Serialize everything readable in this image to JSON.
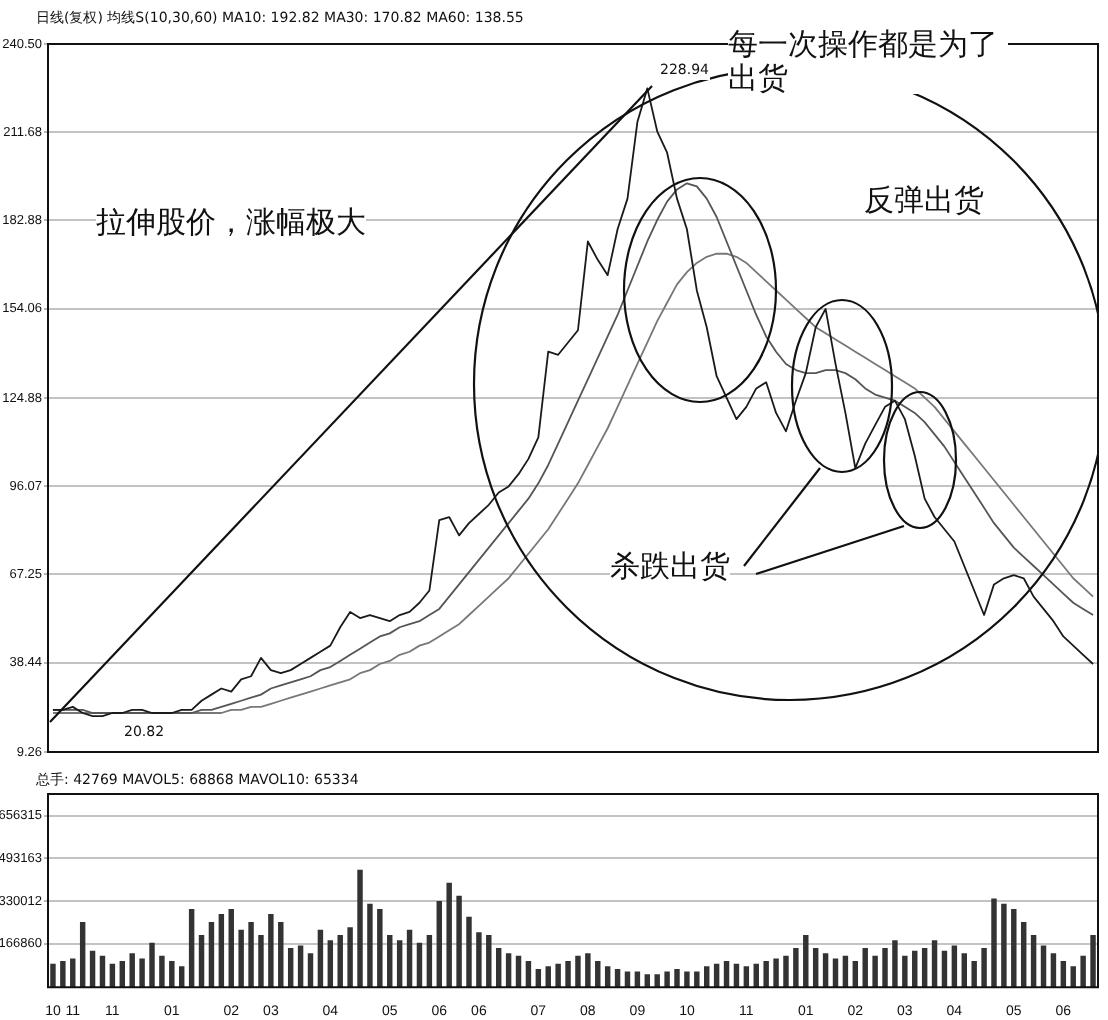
{
  "chart_data": [
    {
      "type": "line",
      "subtitle": "日线(复权) 均线S(10,30,60) MA10: 192.82 MA30: 170.82 MA60: 138.55",
      "categories": [
        "10",
        null,
        "11",
        null,
        null,
        null,
        "11",
        null,
        null,
        null,
        null,
        null,
        "01",
        null,
        null,
        null,
        null,
        null,
        "02",
        null,
        null,
        null,
        "03",
        null,
        null,
        null,
        null,
        null,
        "04",
        null,
        null,
        null,
        null,
        null,
        "05",
        null,
        null,
        null,
        null,
        "06",
        null,
        null,
        null,
        "06",
        null,
        null,
        null,
        null,
        null,
        "07",
        null,
        null,
        null,
        null,
        "08",
        null,
        null,
        null,
        null,
        "09",
        null,
        null,
        null,
        null,
        "10",
        null,
        null,
        null,
        null,
        null,
        "11",
        null,
        null,
        null,
        null,
        null,
        "01",
        null,
        null,
        null,
        null,
        "02",
        null,
        null,
        null,
        null,
        "03",
        null,
        null,
        null,
        null,
        "04",
        null,
        null,
        null,
        null,
        null,
        "05",
        null,
        null,
        null,
        null,
        "06",
        null,
        null,
        null
      ],
      "series": [
        {
          "color": "#1a1a1a",
          "values": [
            23,
            23,
            24,
            22,
            21,
            21,
            22,
            22,
            23,
            23,
            22,
            22,
            22,
            23,
            23,
            26,
            28,
            30,
            29,
            33,
            34,
            40,
            36,
            35,
            36,
            38,
            40,
            42,
            44,
            50,
            55,
            53,
            54,
            53,
            52,
            54,
            55,
            58,
            62,
            85,
            86,
            80,
            84,
            87,
            90,
            94,
            96,
            100,
            105,
            112,
            140,
            139,
            143,
            147,
            176,
            170,
            165,
            180,
            190,
            215,
            226,
            212,
            205,
            190,
            180,
            160,
            148,
            132,
            125,
            118,
            122,
            128,
            130,
            120,
            114,
            124,
            133,
            148,
            154,
            136,
            120,
            102,
            110,
            116,
            122,
            124,
            118,
            106,
            92,
            86,
            82,
            78,
            70,
            62,
            54,
            64,
            66,
            67,
            66,
            60,
            56,
            52,
            47,
            44,
            41,
            38
          ]
        },
        {
          "color": "#555555",
          "values": [
            23,
            23,
            23,
            23,
            22,
            22,
            22,
            22,
            22,
            22,
            22,
            22,
            22,
            22,
            22,
            23,
            23,
            24,
            25,
            26,
            27,
            28,
            30,
            31,
            32,
            33,
            34,
            36,
            37,
            39,
            41,
            43,
            45,
            47,
            48,
            50,
            51,
            52,
            54,
            56,
            60,
            64,
            68,
            72,
            76,
            80,
            84,
            88,
            92,
            97,
            103,
            110,
            117,
            124,
            131,
            138,
            145,
            152,
            160,
            168,
            176,
            183,
            189,
            193,
            195,
            194,
            190,
            184,
            176,
            168,
            160,
            152,
            145,
            140,
            136,
            134,
            133,
            133,
            134,
            134,
            133,
            131,
            128,
            126,
            125,
            124,
            122,
            120,
            117,
            113,
            109,
            104,
            99,
            94,
            89,
            84,
            80,
            76,
            73,
            70,
            67,
            64,
            61,
            58,
            56,
            54
          ]
        },
        {
          "color": "#777777",
          "values": [
            22,
            22,
            22,
            22,
            22,
            22,
            22,
            22,
            22,
            22,
            22,
            22,
            22,
            22,
            22,
            22,
            22,
            22,
            23,
            23,
            24,
            24,
            25,
            26,
            27,
            28,
            29,
            30,
            31,
            32,
            33,
            35,
            36,
            38,
            39,
            41,
            42,
            44,
            45,
            47,
            49,
            51,
            54,
            57,
            60,
            63,
            66,
            70,
            74,
            78,
            82,
            87,
            92,
            97,
            103,
            109,
            115,
            122,
            129,
            136,
            143,
            150,
            156,
            162,
            166,
            169,
            171,
            172,
            172,
            171,
            169,
            166,
            163,
            160,
            157,
            154,
            151,
            148,
            146,
            144,
            142,
            140,
            138,
            136,
            134,
            132,
            130,
            128,
            125,
            122,
            118,
            114,
            110,
            106,
            102,
            98,
            94,
            90,
            86,
            82,
            78,
            74,
            70,
            66,
            63,
            60
          ]
        }
      ],
      "ylim": [
        9.26,
        240.5
      ],
      "yticks": [
        9.26,
        38.44,
        67.25,
        96.07,
        124.88,
        154.06,
        182.88,
        211.68,
        {
          "value": 240.5,
          "label": "240.50"
        }
      ],
      "grid": "y",
      "marker": "none",
      "tick_labels": "y",
      "legend": false,
      "annotations": [
        "拉伸股价，涨幅极大",
        "每一次操作都是为了出货",
        "反弹出货",
        "杀跌出货",
        "228.94",
        "20.82"
      ]
    },
    {
      "type": "bar",
      "subtitle": "总手: 42769 MAVOL5: 68868 MAVOL10: 65334",
      "categories": [
        "10",
        null,
        "11",
        null,
        null,
        null,
        "11",
        null,
        null,
        null,
        null,
        null,
        "01",
        null,
        null,
        null,
        null,
        null,
        "02",
        null,
        null,
        null,
        "03",
        null,
        null,
        null,
        null,
        null,
        "04",
        null,
        null,
        null,
        null,
        null,
        "05",
        null,
        null,
        null,
        null,
        "06",
        null,
        null,
        null,
        "06",
        null,
        null,
        null,
        null,
        null,
        "07",
        null,
        null,
        null,
        null,
        "08",
        null,
        null,
        null,
        null,
        "09",
        null,
        null,
        null,
        null,
        "10",
        null,
        null,
        null,
        null,
        null,
        "11",
        null,
        null,
        null,
        null,
        null,
        "01",
        null,
        null,
        null,
        null,
        "02",
        null,
        null,
        null,
        null,
        "03",
        null,
        null,
        null,
        null,
        "04",
        null,
        null,
        null,
        null,
        null,
        "05",
        null,
        null,
        null,
        null,
        "06",
        null,
        null,
        null
      ],
      "color": "#333333",
      "values": [
        90000,
        100000,
        110000,
        250000,
        140000,
        120000,
        90000,
        100000,
        130000,
        110000,
        170000,
        120000,
        100000,
        80000,
        300000,
        200000,
        250000,
        280000,
        300000,
        220000,
        250000,
        200000,
        280000,
        250000,
        150000,
        160000,
        130000,
        220000,
        180000,
        200000,
        230000,
        450000,
        320000,
        300000,
        200000,
        180000,
        220000,
        170000,
        200000,
        330000,
        400000,
        350000,
        270000,
        210000,
        200000,
        150000,
        130000,
        120000,
        100000,
        70000,
        80000,
        90000,
        100000,
        120000,
        130000,
        100000,
        80000,
        70000,
        60000,
        60000,
        50000,
        50000,
        60000,
        70000,
        60000,
        60000,
        80000,
        90000,
        100000,
        90000,
        80000,
        90000,
        100000,
        110000,
        120000,
        150000,
        200000,
        150000,
        130000,
        110000,
        120000,
        100000,
        150000,
        120000,
        150000,
        180000,
        120000,
        140000,
        150000,
        180000,
        140000,
        160000,
        130000,
        100000,
        150000,
        340000,
        320000,
        300000,
        250000,
        200000,
        160000,
        130000,
        100000,
        80000,
        120000,
        200000
      ],
      "ylim": [
        0,
        740000
      ],
      "yticks": [
        166860,
        330012,
        493163,
        656315
      ],
      "grid": "y",
      "legend": false
    }
  ]
}
